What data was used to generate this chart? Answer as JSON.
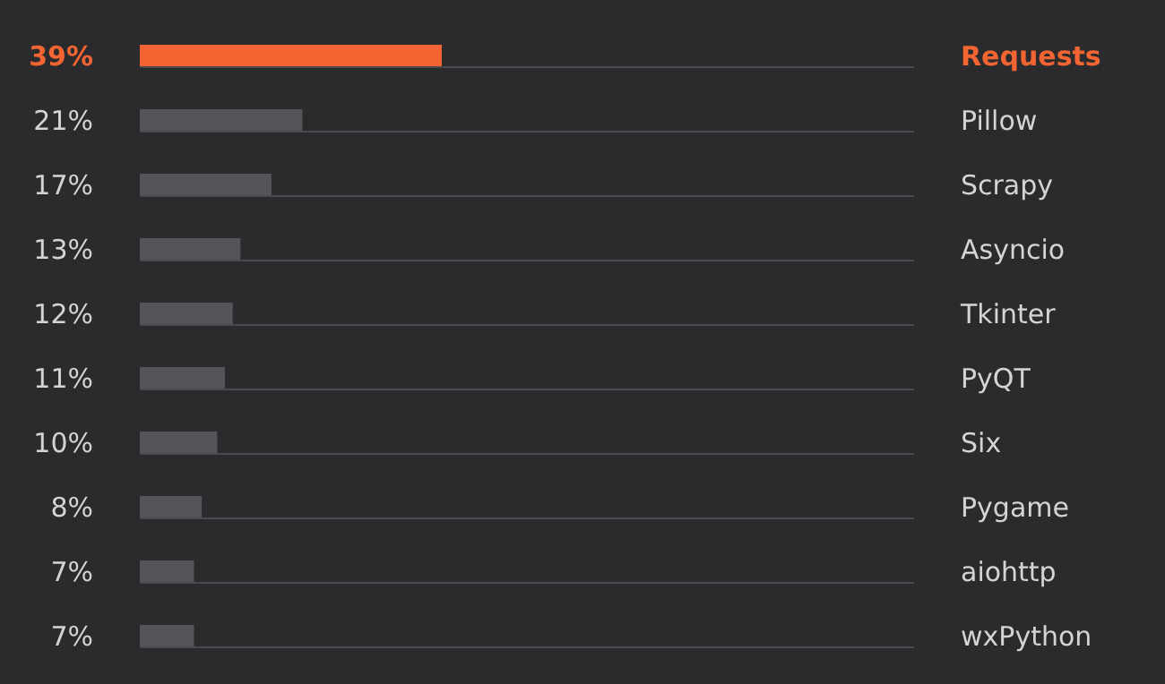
{
  "chart_data": {
    "type": "bar",
    "orientation": "horizontal",
    "categories": [
      "Requests",
      "Pillow",
      "Scrapy",
      "Asyncio",
      "Tkinter",
      "PyQT",
      "Six",
      "Pygame",
      "aiohttp",
      "wxPython"
    ],
    "values": [
      39,
      21,
      17,
      13,
      12,
      11,
      10,
      8,
      7,
      7
    ],
    "value_labels": [
      "39%",
      "21%",
      "17%",
      "13%",
      "12%",
      "11%",
      "10%",
      "8%",
      "7%",
      "7%"
    ],
    "color": "#555559",
    "colors": [
      "#f26532",
      "#555559",
      "#555559",
      "#555559",
      "#555559",
      "#555559",
      "#555559",
      "#555559",
      "#555559",
      "#555559"
    ],
    "xlim": [
      0,
      100
    ]
  }
}
